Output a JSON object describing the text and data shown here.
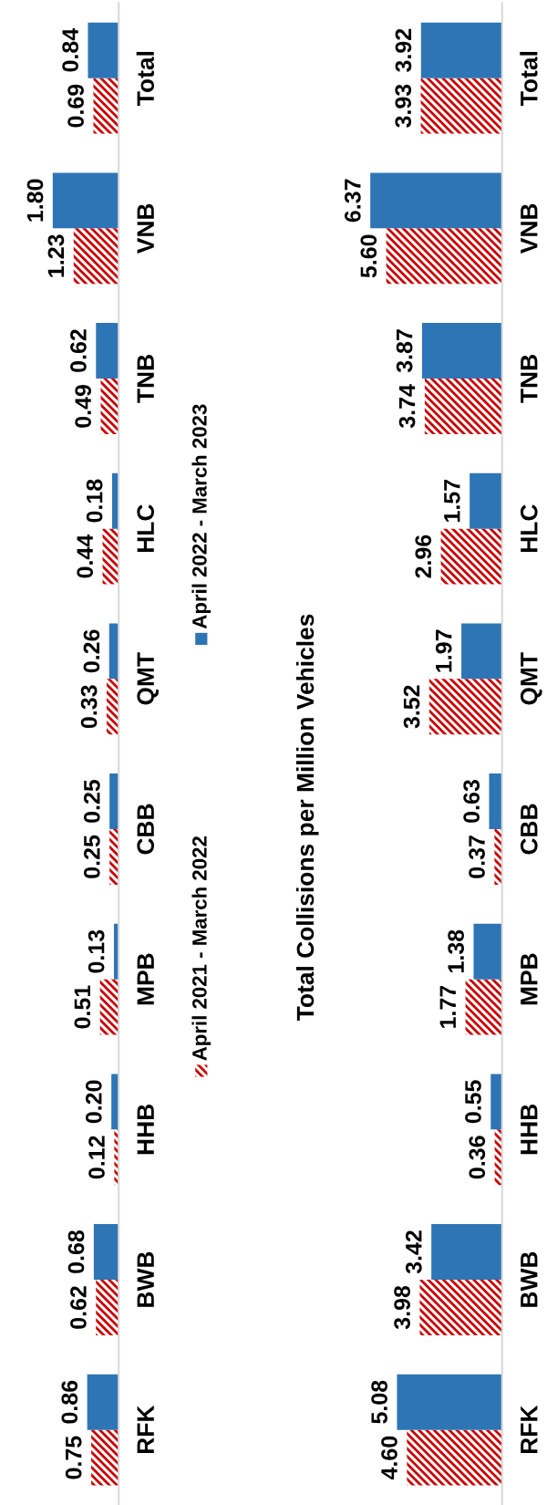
{
  "chart_data": [
    {
      "type": "bar",
      "orientation": "horizontal",
      "categories": [
        "Total",
        "VNB",
        "TNB",
        "HLC",
        "QMT",
        "CBB",
        "MPB",
        "HHB",
        "BWB",
        "RFK"
      ],
      "legend": "right",
      "tick_labels": "y",
      "grid": false,
      "series": [
        {
          "name": "April 2021 - March 2022",
          "color": "#cc0000",
          "values": [
            0.69,
            1.23,
            0.49,
            0.44,
            0.33,
            0.25,
            0.51,
            0.12,
            0.62,
            0.75
          ],
          "value_labels": [
            "0.69",
            "1.23",
            "0.49",
            "0.44",
            "0.33",
            "0.25",
            "0.51",
            "0.12",
            "0.62",
            "0.75"
          ]
        },
        {
          "name": "April 2022 - March 2023",
          "color": "#2e75b6",
          "values": [
            0.84,
            1.8,
            0.62,
            0.18,
            0.26,
            0.25,
            0.13,
            0.2,
            0.68,
            0.86
          ],
          "value_labels": [
            "0.84",
            "1.80",
            "0.62",
            "0.18",
            "0.26",
            "0.25",
            "0.13",
            "0.20",
            "0.68",
            "0.86"
          ]
        }
      ]
    },
    {
      "type": "bar",
      "orientation": "horizontal",
      "title": "Total Collisions per Million Vehicles",
      "categories": [
        "Total",
        "VNB",
        "TNB",
        "HLC",
        "QMT",
        "CBB",
        "MPB",
        "HHB",
        "BWB",
        "RFK"
      ],
      "tick_labels": "y",
      "grid": false,
      "series": [
        {
          "color": "#cc0000",
          "values": [
            3.93,
            5.6,
            3.74,
            2.96,
            3.52,
            0.37,
            1.77,
            0.36,
            3.98,
            4.6
          ],
          "value_labels": [
            "3.93",
            "5.60",
            "3.74",
            "2.96",
            "3.52",
            "0.37",
            "1.77",
            "0.36",
            "3.98",
            "4.60"
          ]
        },
        {
          "color": "#2e75b6",
          "values": [
            3.92,
            6.37,
            3.87,
            1.57,
            1.97,
            0.63,
            1.38,
            0.55,
            3.42,
            5.08
          ],
          "value_labels": [
            "3.92",
            "6.37",
            "3.87",
            "1.57",
            "1.97",
            "0.63",
            "1.38",
            "0.55",
            "3.42",
            "5.08"
          ]
        }
      ]
    }
  ]
}
